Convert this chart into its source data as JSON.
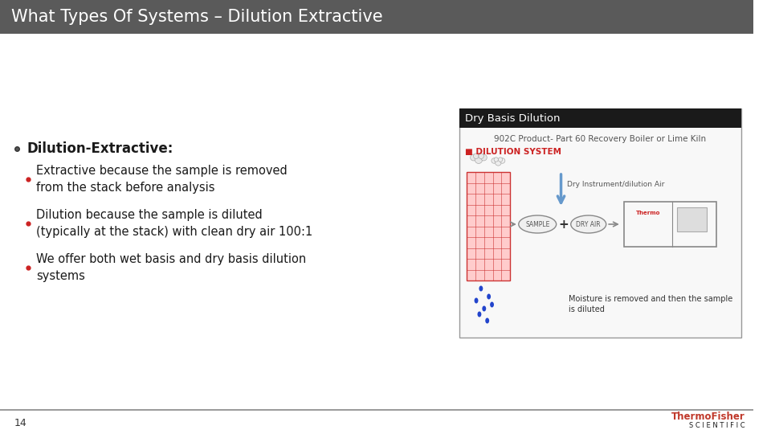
{
  "title": "What Types Of Systems – Dilution Extractive",
  "title_bg": "#5a5a5a",
  "title_color": "#ffffff",
  "slide_bg": "#ffffff",
  "footer_line_color": "#aaaaaa",
  "footer_number": "14",
  "thermo_fisher_red": "#c0392b",
  "thermo_fisher_dark": "#1a1a1a",
  "bullet_main": "Dilution-Extractive:",
  "bullet1": "Extractive because the sample is removed\nfrom the stack before analysis",
  "bullet2": "Dilution because the sample is diluted\n(typically at the stack) with clean dry air 100:1",
  "bullet3": "We offer both wet basis and dry basis dilution\nsystems",
  "img_label": "Dry Basis Dilution",
  "img_sublabel1": "902C Product- Part 60 Recovery Boiler or Lime Kiln",
  "img_sublabel2": "■ DILUTION SYSTEM",
  "img_note": "Moisture is removed and then the sample\nis diluted",
  "img_air_label": "Dry Instrument/dilution Air"
}
